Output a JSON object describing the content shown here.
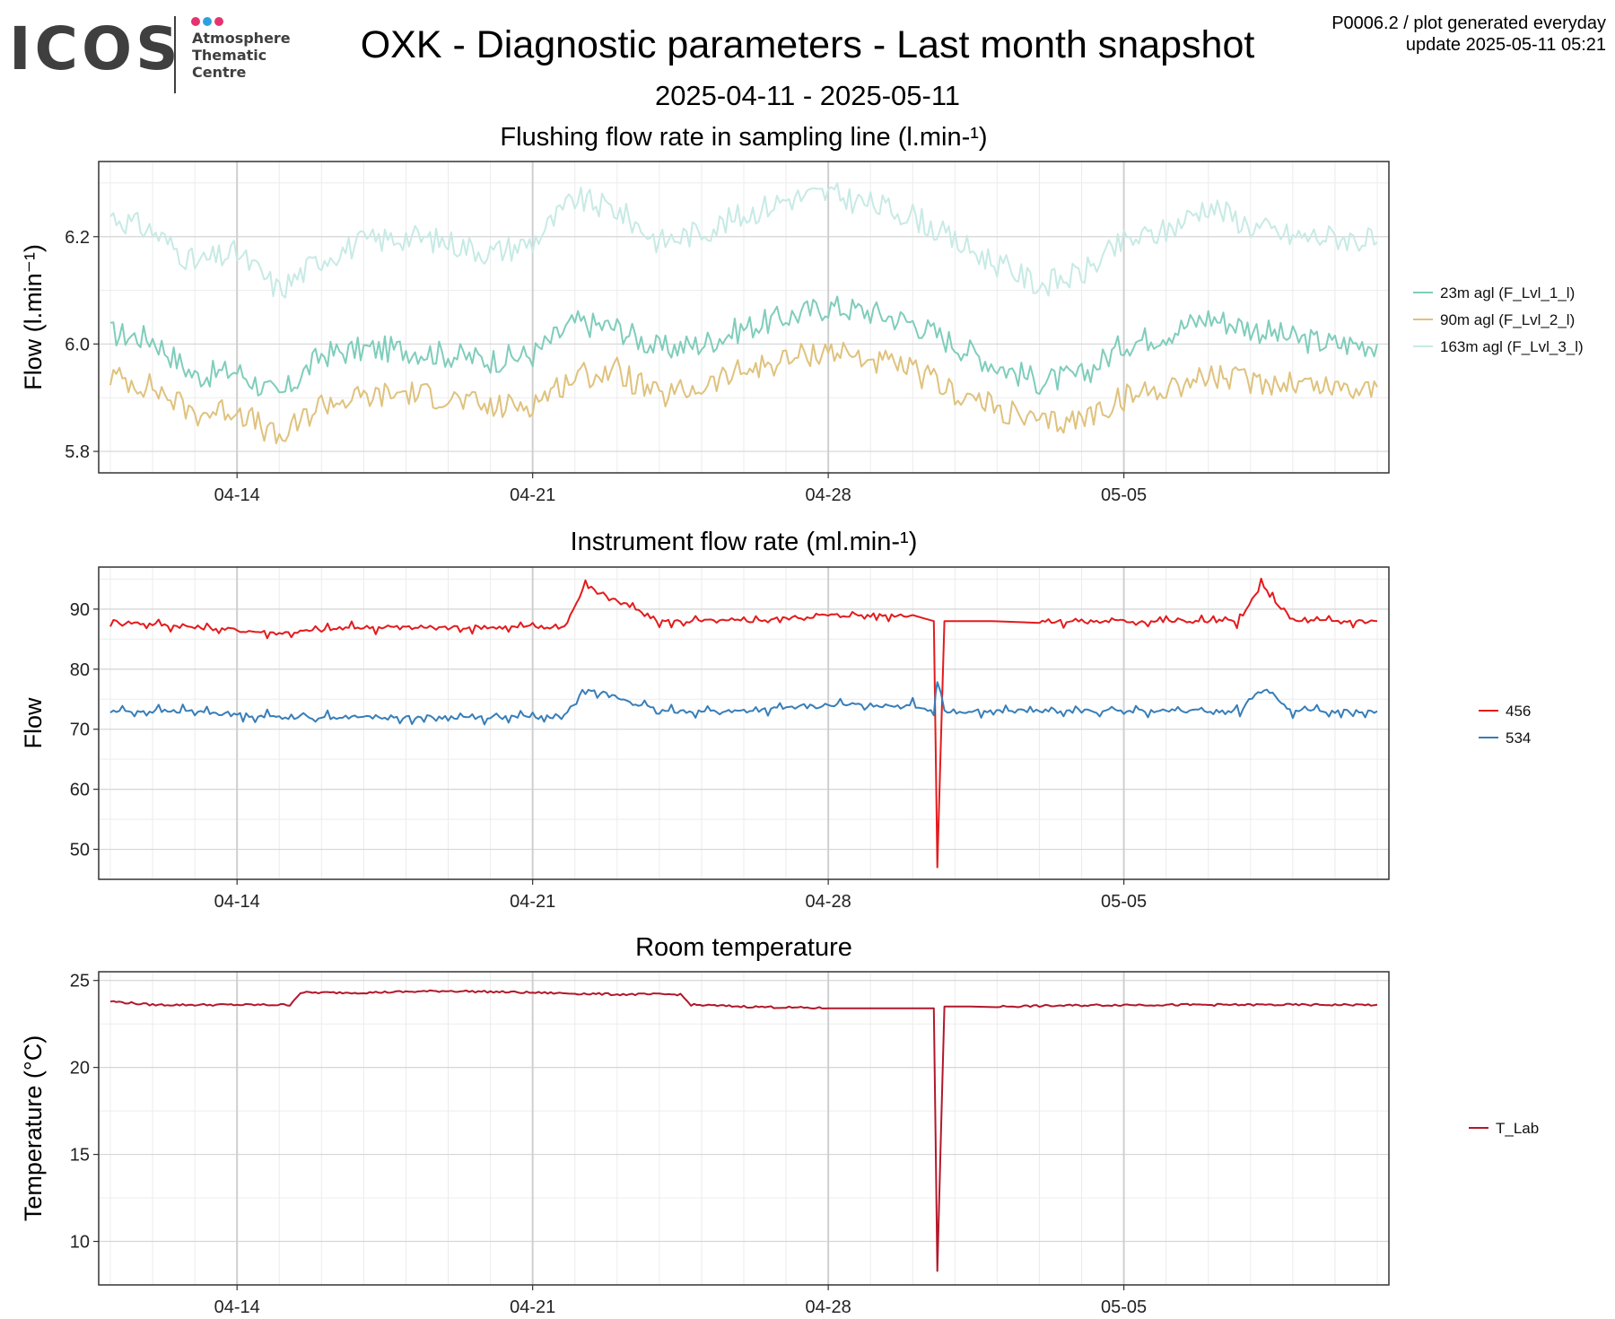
{
  "header": {
    "logo_text": "ICOS",
    "logo_lines": [
      "Atmosphere",
      "Thematic",
      "Centre"
    ],
    "logo_dot_colors": [
      "#e6336f",
      "#2ba2e0",
      "#e6336f"
    ],
    "title": "OXK - Diagnostic parameters - Last month snapshot",
    "date_range": "2025-04-11 - 2025-05-11",
    "meta_line1": "P0006.2 / plot generated everyday",
    "meta_line2": "update  2025-05-11 05:21"
  },
  "chart_data": [
    {
      "type": "line",
      "title": "Flushing flow rate in sampling line (l.min-¹)",
      "ylabel": "Flow (l.min⁻¹)",
      "xlim": [
        "2025-04-11",
        "2025-05-11"
      ],
      "ylim": [
        5.76,
        6.34
      ],
      "yticks": [
        5.8,
        6.0,
        6.2
      ],
      "yticklabels": [
        "5.8",
        "6.0",
        "6.2"
      ],
      "xticks": [
        "2025-04-14",
        "2025-04-21",
        "2025-04-28",
        "2025-05-05"
      ],
      "xticklabels": [
        "04-14",
        "04-21",
        "04-28",
        "05-05"
      ],
      "grid": true,
      "legend_position": "right",
      "series": [
        {
          "name": "23m agl (F_Lvl_1_l)",
          "color": "#7fcdbb",
          "x": [
            "2025-04-11",
            "2025-04-12",
            "2025-04-13",
            "2025-04-14",
            "2025-04-15",
            "2025-04-16",
            "2025-04-17",
            "2025-04-18",
            "2025-04-19",
            "2025-04-20",
            "2025-04-21",
            "2025-04-22",
            "2025-04-23",
            "2025-04-24",
            "2025-04-25",
            "2025-04-26",
            "2025-04-27",
            "2025-04-28",
            "2025-04-29",
            "2025-04-30",
            "2025-05-01",
            "2025-05-02",
            "2025-05-03",
            "2025-05-04",
            "2025-05-05",
            "2025-05-06",
            "2025-05-07",
            "2025-05-08",
            "2025-05-09",
            "2025-05-10",
            "2025-05-11"
          ],
          "y": [
            6.02,
            6.01,
            5.94,
            5.95,
            5.9,
            5.98,
            5.99,
            5.99,
            5.98,
            5.97,
            5.98,
            6.04,
            6.03,
            5.99,
            6.0,
            6.03,
            6.05,
            6.07,
            6.06,
            6.04,
            6.0,
            5.96,
            5.93,
            5.94,
            6.0,
            6.02,
            6.05,
            6.03,
            6.01,
            6.0,
            6.0
          ]
        },
        {
          "name": "90m agl (F_Lvl_2_l)",
          "color": "#dfc27d",
          "x": [
            "2025-04-11",
            "2025-04-12",
            "2025-04-13",
            "2025-04-14",
            "2025-04-15",
            "2025-04-16",
            "2025-04-17",
            "2025-04-18",
            "2025-04-19",
            "2025-04-20",
            "2025-04-21",
            "2025-04-22",
            "2025-04-23",
            "2025-04-24",
            "2025-04-25",
            "2025-04-26",
            "2025-04-27",
            "2025-04-28",
            "2025-04-29",
            "2025-04-30",
            "2025-05-01",
            "2025-05-02",
            "2025-05-03",
            "2025-05-04",
            "2025-05-05",
            "2025-05-06",
            "2025-05-07",
            "2025-05-08",
            "2025-05-09",
            "2025-05-10",
            "2025-05-11"
          ],
          "y": [
            5.94,
            5.92,
            5.87,
            5.88,
            5.82,
            5.89,
            5.9,
            5.91,
            5.9,
            5.88,
            5.89,
            5.94,
            5.95,
            5.9,
            5.92,
            5.95,
            5.97,
            5.99,
            5.97,
            5.95,
            5.91,
            5.88,
            5.85,
            5.86,
            5.9,
            5.92,
            5.94,
            5.93,
            5.93,
            5.92,
            5.92
          ]
        },
        {
          "name": "163m agl (F_Lvl_3_l)",
          "color": "#c7eae5",
          "x": [
            "2025-04-11",
            "2025-04-12",
            "2025-04-13",
            "2025-04-14",
            "2025-04-15",
            "2025-04-16",
            "2025-04-17",
            "2025-04-18",
            "2025-04-19",
            "2025-04-20",
            "2025-04-21",
            "2025-04-22",
            "2025-04-23",
            "2025-04-24",
            "2025-04-25",
            "2025-04-26",
            "2025-04-27",
            "2025-04-28",
            "2025-04-29",
            "2025-04-30",
            "2025-05-01",
            "2025-05-02",
            "2025-05-03",
            "2025-05-04",
            "2025-05-05",
            "2025-05-06",
            "2025-05-07",
            "2025-05-08",
            "2025-05-09",
            "2025-05-10",
            "2025-05-11"
          ],
          "y": [
            6.24,
            6.21,
            6.15,
            6.17,
            6.1,
            6.16,
            6.19,
            6.2,
            6.19,
            6.17,
            6.19,
            6.27,
            6.25,
            6.19,
            6.21,
            6.24,
            6.27,
            6.28,
            6.26,
            6.24,
            6.19,
            6.15,
            6.11,
            6.13,
            6.19,
            6.21,
            6.26,
            6.22,
            6.2,
            6.2,
            6.19
          ]
        }
      ]
    },
    {
      "type": "line",
      "title": "Instrument flow rate (ml.min-¹)",
      "ylabel": "Flow",
      "xlim": [
        "2025-04-11",
        "2025-05-11"
      ],
      "ylim": [
        45,
        97
      ],
      "yticks": [
        50,
        60,
        70,
        80,
        90
      ],
      "yticklabels": [
        "50",
        "60",
        "70",
        "80",
        "90"
      ],
      "xticks": [
        "2025-04-14",
        "2025-04-21",
        "2025-04-28",
        "2025-05-05"
      ],
      "xticklabels": [
        "04-14",
        "04-21",
        "04-28",
        "05-05"
      ],
      "grid": true,
      "legend_position": "right",
      "series": [
        {
          "name": "456",
          "color": "#e41a1c",
          "x": [
            "2025-04-11",
            "2025-04-13",
            "2025-04-15",
            "2025-04-17",
            "2025-04-19",
            "2025-04-21",
            "2025-04-21 18:00",
            "2025-04-22 06:00",
            "2025-04-24",
            "2025-04-26",
            "2025-04-28",
            "2025-04-30",
            "2025-04-30 12:00",
            "2025-04-30 14:00",
            "2025-04-30 18:00",
            "2025-05-03",
            "2025-05-06",
            "2025-05-07 18:00",
            "2025-05-08 06:00",
            "2025-05-09",
            "2025-05-11"
          ],
          "y": [
            88,
            87,
            86,
            87,
            87,
            87,
            87,
            94,
            88,
            88,
            89,
            89,
            88,
            47,
            88,
            88,
            88,
            88,
            94,
            88,
            88
          ]
        },
        {
          "name": "534",
          "color": "#377eb8",
          "x": [
            "2025-04-11",
            "2025-04-13",
            "2025-04-15",
            "2025-04-17",
            "2025-04-19",
            "2025-04-21",
            "2025-04-21 18:00",
            "2025-04-22 06:00",
            "2025-04-24",
            "2025-04-26",
            "2025-04-28",
            "2025-04-30",
            "2025-04-30 12:00",
            "2025-04-30 14:00",
            "2025-04-30 18:00",
            "2025-05-03",
            "2025-05-06",
            "2025-05-07 18:00",
            "2025-05-08 06:00",
            "2025-05-09",
            "2025-05-11"
          ],
          "y": [
            73,
            73,
            72,
            72,
            72,
            72,
            72,
            77,
            73,
            73,
            74,
            74,
            73,
            79,
            73,
            73,
            73,
            73,
            77,
            73,
            73
          ]
        }
      ]
    },
    {
      "type": "line",
      "title": "Room temperature",
      "ylabel": "Temperature (°C)",
      "xlim": [
        "2025-04-11",
        "2025-05-11"
      ],
      "ylim": [
        7.5,
        25.5
      ],
      "yticks": [
        10,
        15,
        20,
        25
      ],
      "yticklabels": [
        "10",
        "15",
        "20",
        "25"
      ],
      "xticks": [
        "2025-04-14",
        "2025-04-21",
        "2025-04-28",
        "2025-05-05"
      ],
      "xticklabels": [
        "04-14",
        "04-21",
        "04-28",
        "05-05"
      ],
      "grid": true,
      "legend_position": "right",
      "series": [
        {
          "name": "T_Lab",
          "color": "#b2182b",
          "x": [
            "2025-04-11",
            "2025-04-12",
            "2025-04-13",
            "2025-04-14",
            "2025-04-15 06:00",
            "2025-04-15 12:00",
            "2025-04-17",
            "2025-04-19",
            "2025-04-21",
            "2025-04-23",
            "2025-04-24 12:00",
            "2025-04-24 18:00",
            "2025-04-26",
            "2025-04-28",
            "2025-04-30 12:00",
            "2025-04-30 14:00",
            "2025-04-30 18:00",
            "2025-05-02",
            "2025-05-05",
            "2025-05-08",
            "2025-05-11"
          ],
          "y": [
            23.8,
            23.6,
            23.6,
            23.6,
            23.6,
            24.3,
            24.3,
            24.4,
            24.3,
            24.2,
            24.2,
            23.6,
            23.5,
            23.4,
            23.4,
            8.3,
            23.5,
            23.5,
            23.6,
            23.6,
            23.6
          ]
        }
      ]
    }
  ]
}
